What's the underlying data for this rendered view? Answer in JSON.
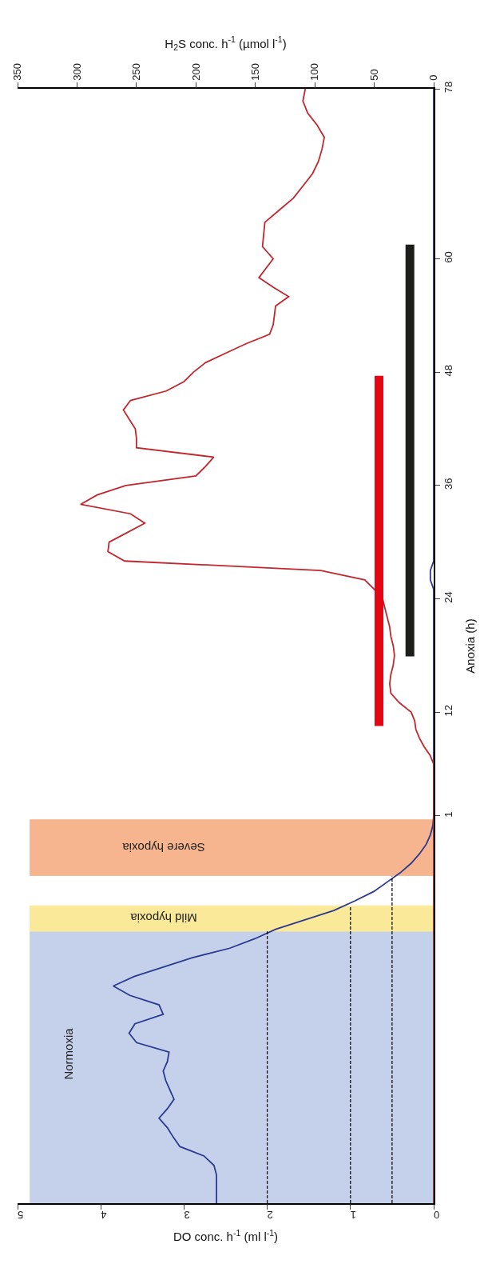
{
  "chart_data": {
    "type": "line",
    "orientation": "horizontal",
    "xlabel": "DO conc. h$^{-1}$ (ml l$^{-1}$)",
    "x2label": "H$_{2}$S conc. h$^{-1}$ (µmol l$^{-1}$)",
    "ylabel": "Anoxia (h)",
    "xlim": [
      5,
      0
    ],
    "xticks": [
      0,
      1,
      2,
      3,
      4,
      5
    ],
    "x2lim": [
      350,
      0
    ],
    "x2ticks": [
      0,
      50,
      100,
      150,
      200,
      250,
      300,
      350
    ],
    "ylim": [
      -40,
      78
    ],
    "yticks": [
      1,
      12,
      24,
      36,
      48,
      60,
      78
    ],
    "grid": false,
    "marker": "none",
    "bands": [
      {
        "axis": "y",
        "from": -40,
        "to": -11.2,
        "label": "Normoxia",
        "color": "#c5d1ea"
      },
      {
        "axis": "y",
        "from": -11.2,
        "to": -8.5,
        "label": "Mild hypoxia",
        "color": "#fbe99a"
      },
      {
        "axis": "y",
        "from": -5.3,
        "to": 0.6,
        "label": "Severe hypoxia",
        "color": "#f6b58e"
      }
    ],
    "series": [
      {
        "color": "#2b3990",
        "x": [
          -40,
          -37,
          -36,
          -35,
          -34,
          -33,
          -32,
          -31,
          -30,
          -29,
          -28,
          -27,
          -26,
          -25,
          -24,
          -23,
          -22,
          -21,
          -20,
          -19,
          -18,
          -17,
          -16,
          -15,
          -14,
          -13,
          -12,
          -11,
          -10,
          -9,
          -8,
          -7,
          -6,
          -5,
          -4,
          -3,
          -2,
          -1,
          0,
          1,
          25,
          26,
          27,
          28,
          78
        ],
        "values": [
          2.61,
          2.61,
          2.64,
          2.76,
          3.05,
          3.13,
          3.2,
          3.3,
          3.2,
          3.12,
          3.17,
          3.22,
          3.25,
          3.2,
          3.18,
          3.57,
          3.66,
          3.59,
          3.25,
          3.3,
          3.65,
          3.85,
          3.6,
          3.25,
          2.9,
          2.45,
          2.15,
          1.9,
          1.55,
          1.2,
          0.95,
          0.72,
          0.56,
          0.4,
          0.27,
          0.17,
          0.09,
          0.04,
          0.01,
          0,
          0,
          0.04,
          0.04,
          0,
          0
        ]
      },
      {
        "color": "#c1272d",
        "axis": "x2",
        "x": [
          -40,
          6.5,
          7.42,
          8.33,
          9.25,
          10.17,
          11.08,
          12,
          13,
          14,
          15,
          16,
          17,
          18,
          19,
          20,
          21,
          22,
          23,
          24,
          25,
          26,
          27,
          28,
          29,
          30,
          31,
          32,
          33,
          34,
          35,
          36,
          37,
          38,
          39,
          40,
          41,
          42,
          43,
          44,
          45,
          46,
          47,
          48,
          49,
          50,
          51,
          52,
          53,
          54,
          55,
          56,
          57,
          58,
          59,
          60,
          61.29,
          62.57,
          63.86,
          65.14,
          66.43,
          67.71,
          69,
          70.29,
          71.57,
          72.86,
          74.14,
          75.43,
          76.71,
          78
        ],
        "values": [
          0,
          0,
          3,
          8,
          12,
          15,
          16,
          19,
          29,
          36,
          37,
          36,
          34,
          33,
          34,
          36,
          37,
          39,
          41,
          43,
          50,
          58,
          95,
          260,
          274,
          273,
          258,
          243,
          255,
          297,
          283,
          259,
          200,
          192,
          185,
          250,
          250,
          251,
          256,
          261,
          255,
          225,
          210,
          202,
          192,
          175,
          158,
          138,
          135,
          134,
          133,
          122,
          135,
          147,
          141,
          135,
          144,
          143,
          142,
          130,
          118,
          110,
          102,
          97,
          94,
          92,
          98,
          106,
          110,
          108
        ]
      },
      {
        "color": "#e30613",
        "axis": "x2",
        "x": [
          10.53,
          47.6
        ],
        "values": [
          46,
          46
        ]
      },
      {
        "color": "#1d1d1b",
        "axis": "x2",
        "x": [
          17.9,
          61.5
        ],
        "values": [
          20,
          20
        ]
      },
      {
        "color": "#000000",
        "line_style": "dashed",
        "x": [
          -40,
          -11.2
        ],
        "values": [
          2,
          2
        ]
      },
      {
        "color": "#000000",
        "line_style": "dashed",
        "x": [
          -40,
          -8.5
        ],
        "values": [
          1,
          1
        ]
      },
      {
        "color": "#000000",
        "line_style": "dashed",
        "x": [
          -40,
          -5.4
        ],
        "values": [
          0.5,
          0.5
        ]
      }
    ]
  }
}
